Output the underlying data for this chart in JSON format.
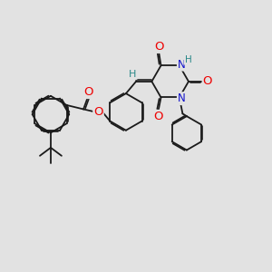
{
  "background_color": "#e2e2e2",
  "bond_color": "#1a1a1a",
  "bond_width": 1.3,
  "dbo": 0.055,
  "atom_colors": {
    "O": "#ee0000",
    "N": "#1111cc",
    "H": "#2a8888",
    "C": "#1a1a1a"
  },
  "fs": 8.5,
  "fig_w": 3.0,
  "fig_h": 3.0,
  "dpi": 100
}
